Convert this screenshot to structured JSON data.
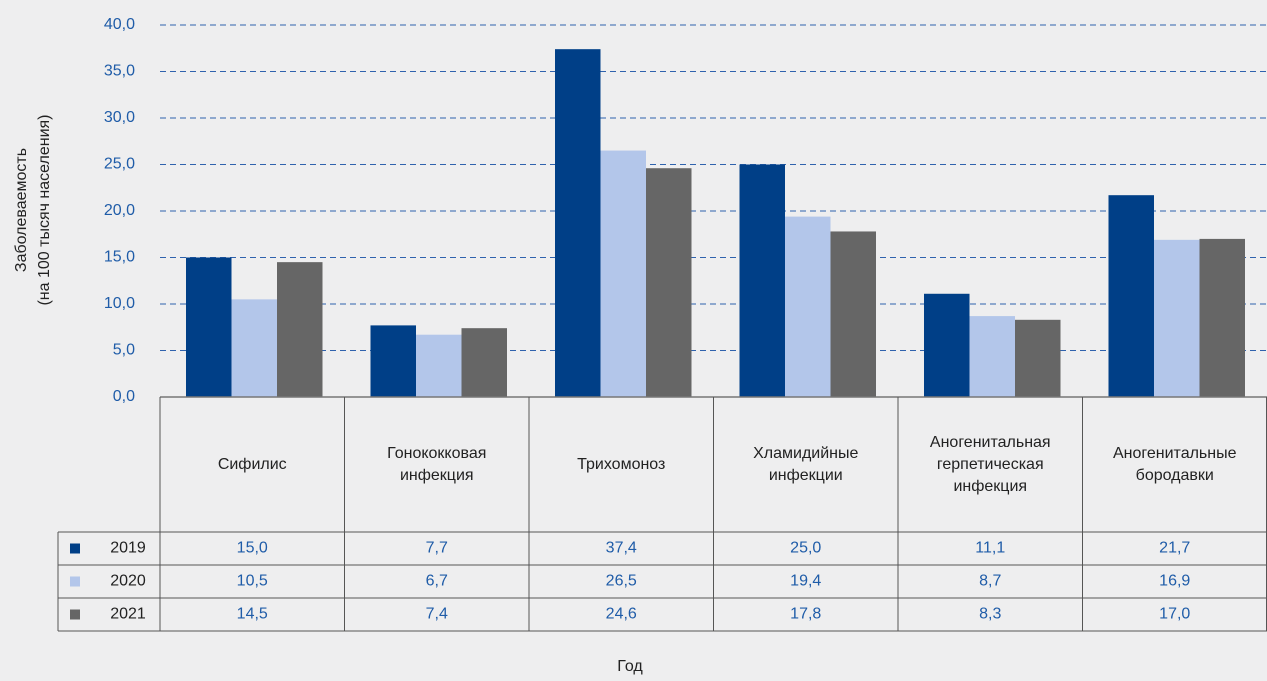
{
  "chart_data": {
    "type": "bar",
    "ylabel": [
      "Заболеваемость",
      "(на 100 тысяч населения)"
    ],
    "xlabel": "Год",
    "categories": [
      "Сифилис",
      "Гонококковая инфекция",
      "Трихомоноз",
      "Хламидийные инфекции",
      "Аногенитальная герпетическая инфекция",
      "Аногенитальные бородавки"
    ],
    "series": [
      {
        "name": "2019",
        "color": "#003f87",
        "values": [
          15.0,
          7.7,
          37.4,
          25.0,
          11.1,
          21.7
        ],
        "value_labels": [
          "15,0",
          "7,7",
          "37,4",
          "25,0",
          "11,1",
          "21,7"
        ]
      },
      {
        "name": "2020",
        "color": "#b3c6ea",
        "values": [
          10.5,
          6.7,
          26.5,
          19.4,
          8.7,
          16.9
        ],
        "value_labels": [
          "10,5",
          "6,7",
          "26,5",
          "19,4",
          "8,7",
          "16,9"
        ]
      },
      {
        "name": "2021",
        "color": "#666666",
        "values": [
          14.5,
          7.4,
          24.6,
          17.8,
          8.3,
          17.0
        ],
        "value_labels": [
          "14,5",
          "7,4",
          "24,6",
          "17,8",
          "8,3",
          "17,0"
        ]
      }
    ],
    "ylim": [
      0,
      40
    ],
    "yticks": [
      {
        "value": 0,
        "label": "0,0"
      },
      {
        "value": 5,
        "label": "5,0"
      },
      {
        "value": 10,
        "label": "10,0"
      },
      {
        "value": 15,
        "label": "15,0"
      },
      {
        "value": 20,
        "label": "20,0"
      },
      {
        "value": 25,
        "label": "25,0"
      },
      {
        "value": 30,
        "label": "30,0"
      },
      {
        "value": 35,
        "label": "35,0"
      },
      {
        "value": 40,
        "label": "40,0"
      }
    ],
    "grid": true,
    "legend": "table"
  }
}
